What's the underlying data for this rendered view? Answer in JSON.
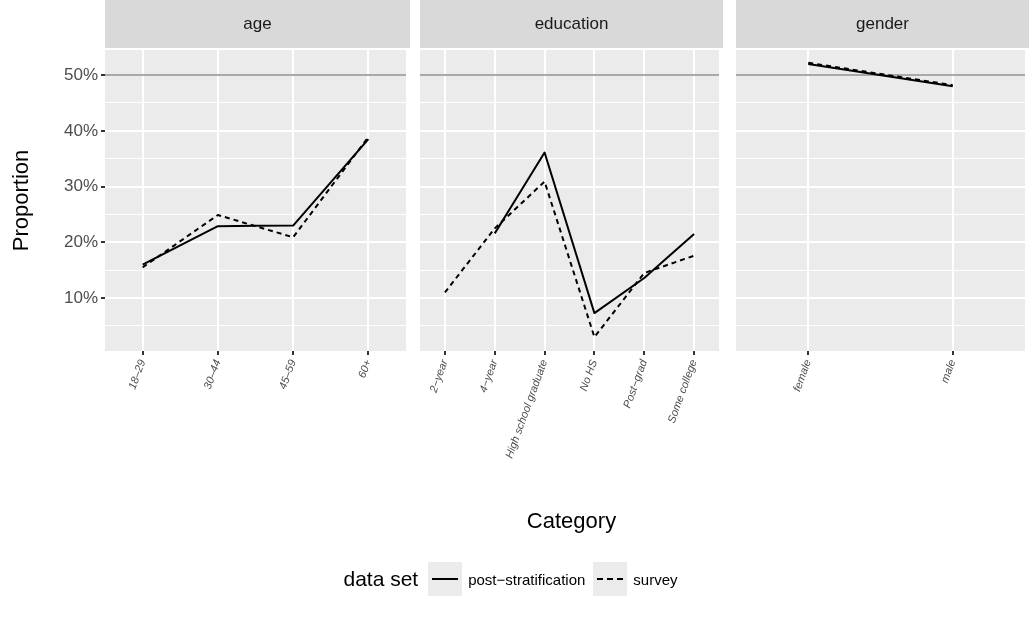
{
  "chart_data": [
    {
      "type": "line",
      "title": "age",
      "ylabel": "Proportion",
      "legend": "bottom",
      "legend_title": "data set",
      "categories": [
        "18–29",
        "30–44",
        "45–59",
        "60+"
      ],
      "series": [
        {
          "name": "post−stratification",
          "color": "#000000",
          "line_style": "solid",
          "values": [
            16.0,
            22.9,
            23.0,
            38.5
          ]
        },
        {
          "name": "survey",
          "color": "#000000",
          "line_style": "dashed",
          "values": [
            15.5,
            24.9,
            20.9,
            38.9
          ]
        }
      ],
      "ylim": [
        0.5,
        54.5
      ],
      "yticks": [
        {
          "value": 5,
          "label": null
        },
        {
          "value": 10,
          "label": "10%"
        },
        {
          "value": 15,
          "label": null
        },
        {
          "value": 20,
          "label": "20%"
        },
        {
          "value": 25,
          "label": null
        },
        {
          "value": 30,
          "label": "30%"
        },
        {
          "value": 35,
          "label": null
        },
        {
          "value": 40,
          "label": "40%"
        },
        {
          "value": 45,
          "label": null
        },
        {
          "value": 50,
          "label": "50%"
        }
      ],
      "grid": true,
      "ref_lines": [
        {
          "axis": "y",
          "value": 50,
          "color": "#a9a9a9"
        }
      ]
    },
    {
      "type": "line",
      "title": "education",
      "xlabel": "Category",
      "tick_labels": "x",
      "categories": [
        "2−year",
        "4−year",
        "High school graduate",
        "No HS",
        "Post−grad",
        "Some college"
      ],
      "series": [
        {
          "color": "#000000",
          "line_style": "solid",
          "values": [
            null,
            21.6,
            36.1,
            7.3,
            13.6,
            21.5
          ]
        },
        {
          "color": "#000000",
          "line_style": "dashed",
          "values": [
            11.0,
            22.5,
            30.9,
            3.0,
            14.5,
            17.6
          ]
        }
      ],
      "ylim": [
        0.5,
        54.5
      ],
      "yticks": [
        {
          "value": 5,
          "label": null
        },
        10,
        {
          "value": 15,
          "label": null
        },
        20,
        {
          "value": 25,
          "label": null
        },
        30,
        {
          "value": 35,
          "label": null
        },
        40,
        {
          "value": 45,
          "label": null
        },
        50
      ],
      "grid": true,
      "ref_lines": [
        {
          "axis": "y",
          "value": 50,
          "color": "#a9a9a9"
        }
      ]
    },
    {
      "type": "line",
      "title": "gender",
      "tick_labels": "x",
      "categories": [
        "female",
        "male"
      ],
      "series": [
        {
          "color": "#000000",
          "line_style": "solid",
          "values": [
            52.0,
            48.0
          ]
        },
        {
          "color": "#000000",
          "line_style": "dashed",
          "values": [
            52.2,
            48.2
          ]
        }
      ],
      "ylim": [
        0.5,
        54.5
      ],
      "yticks": [
        {
          "value": 5,
          "label": null
        },
        10,
        {
          "value": 15,
          "label": null
        },
        20,
        {
          "value": 25,
          "label": null
        },
        30,
        {
          "value": 35,
          "label": null
        },
        40,
        {
          "value": 45,
          "label": null
        },
        50
      ],
      "grid": true,
      "ref_lines": [
        {
          "axis": "y",
          "value": 50,
          "color": "#a9a9a9"
        }
      ]
    }
  ]
}
